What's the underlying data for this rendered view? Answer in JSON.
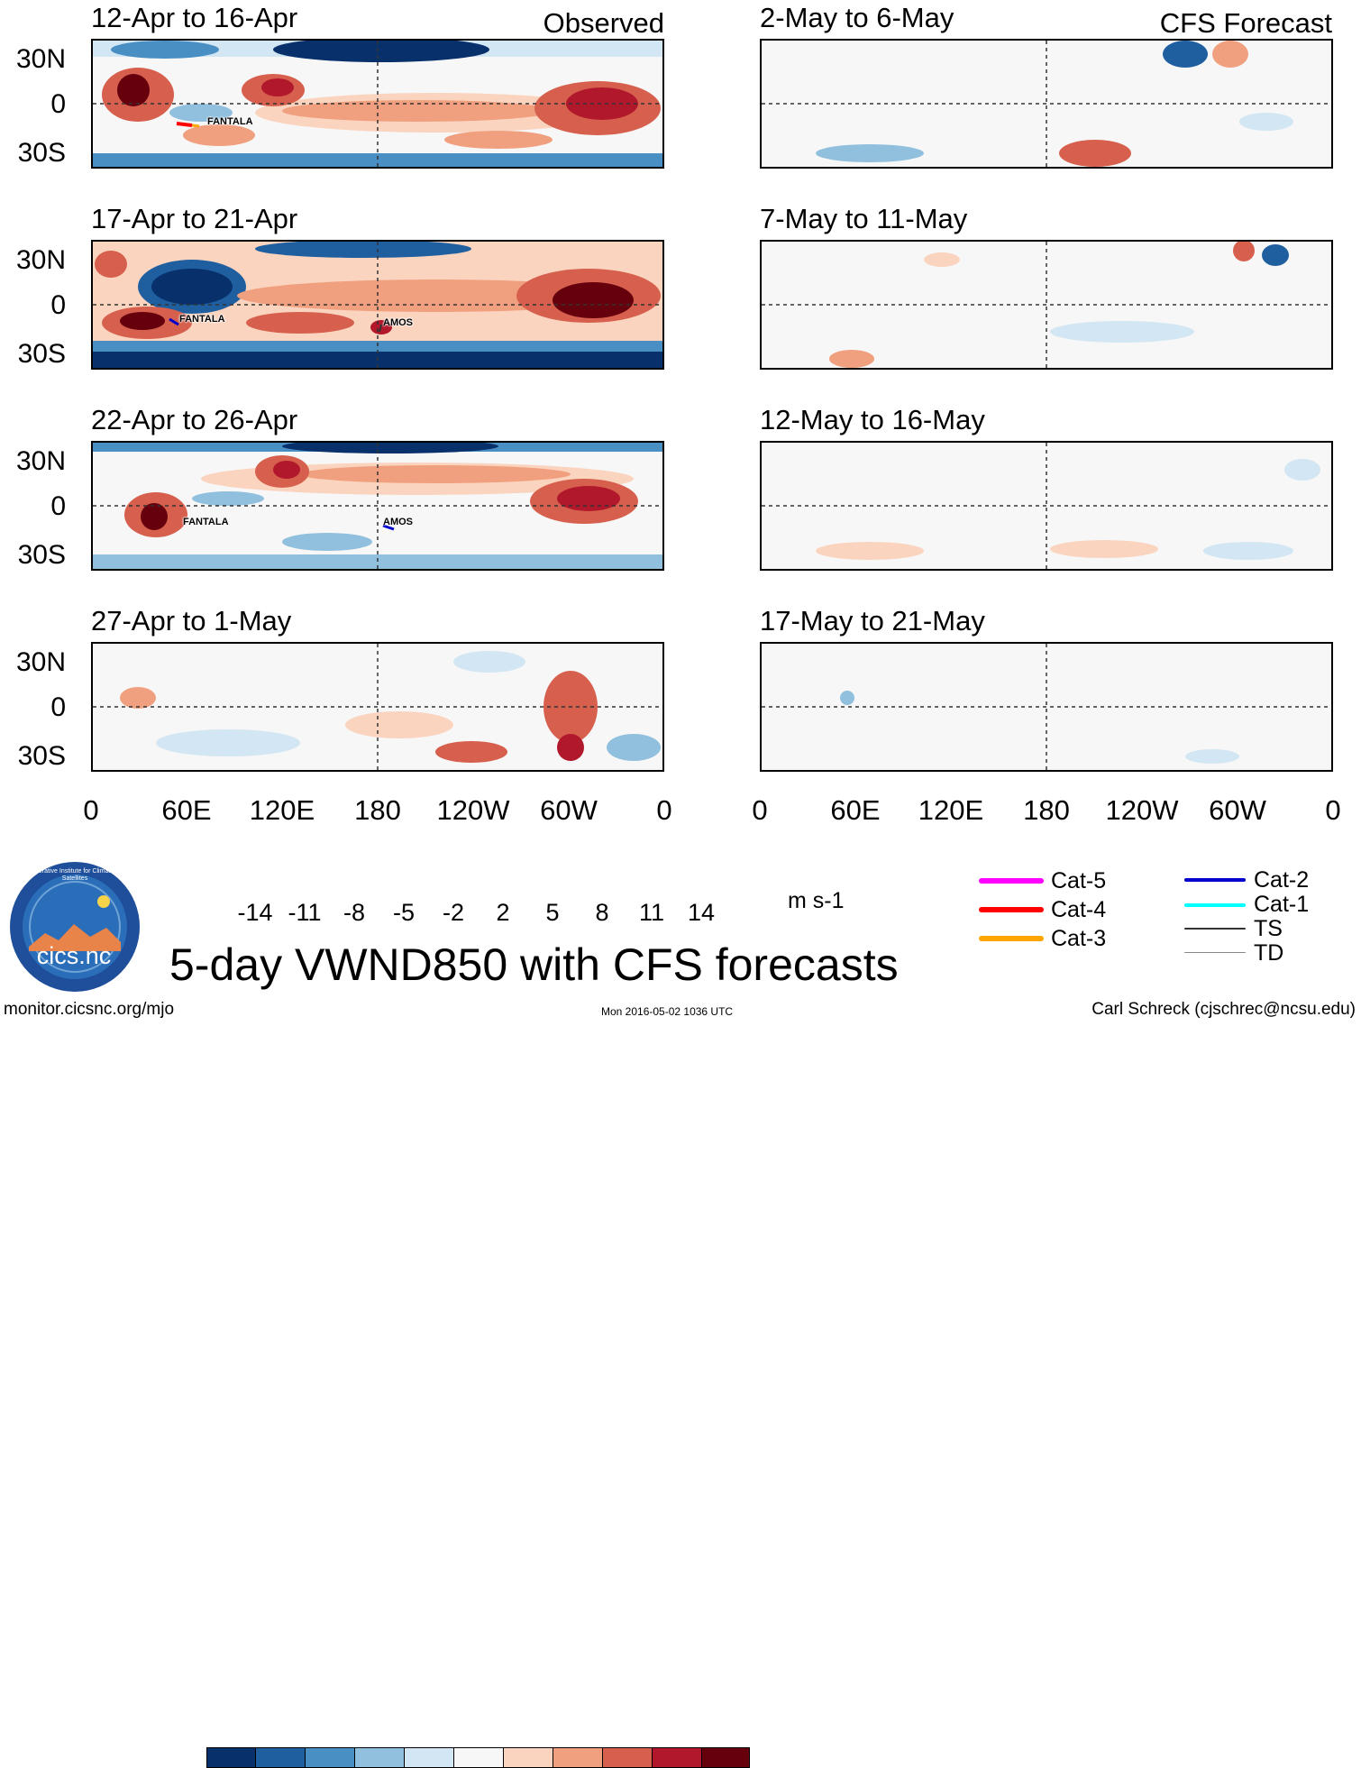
{
  "header": {
    "observed_label": "Observed",
    "forecast_label": "CFS Forecast"
  },
  "observed_panels": [
    {
      "title": "12-Apr to 16-Apr",
      "storms": [
        "FANTALA"
      ]
    },
    {
      "title": "17-Apr to 21-Apr",
      "storms": [
        "FANTALA",
        "AMOS"
      ]
    },
    {
      "title": "22-Apr to 26-Apr",
      "storms": [
        "FANTALA",
        "AMOS"
      ]
    },
    {
      "title": "27-Apr to 1-May",
      "storms": []
    }
  ],
  "forecast_panels": [
    {
      "title": "2-May to 6-May"
    },
    {
      "title": "7-May to 11-May"
    },
    {
      "title": "12-May to 16-May"
    },
    {
      "title": "17-May to 21-May"
    }
  ],
  "axes": {
    "lat_labels": [
      "30N",
      "0",
      "30S"
    ],
    "lon_labels": [
      "0",
      "60E",
      "120E",
      "180",
      "120W",
      "60W",
      "0"
    ]
  },
  "colorbar": {
    "ticks": [
      "-14",
      "-11",
      "-8",
      "-5",
      "-2",
      "2",
      "5",
      "8",
      "11",
      "14"
    ],
    "colors": [
      "#08306b",
      "#1f5fa0",
      "#4a8fc4",
      "#90c0de",
      "#d2e6f3",
      "#f7f7f7",
      "#fbd4bf",
      "#f1a07f",
      "#d6604d",
      "#b2182b",
      "#67000d"
    ],
    "units": "m s-1"
  },
  "legend": {
    "items": [
      {
        "label": "Cat-5",
        "color": "#ff00ff"
      },
      {
        "label": "Cat-4",
        "color": "#ff0000"
      },
      {
        "label": "Cat-3",
        "color": "#ffa500"
      },
      {
        "label": "Cat-2",
        "color": "#0000cd"
      },
      {
        "label": "Cat-1",
        "color": "#00ffff"
      },
      {
        "label": "TS",
        "color": "#333333"
      },
      {
        "label": "TD",
        "color": "#888888"
      }
    ]
  },
  "logo": {
    "text": "cics.nc",
    "ring_text": "Cooperative Institute for Climate and Satellites"
  },
  "main_title": "5-day VWND850 with CFS forecasts",
  "footer": {
    "url": "monitor.cicsnc.org/mjo",
    "timestamp": "Mon 2016-05-02 1036 UTC",
    "author": "Carl Schreck (cjschrec@ncsu.edu)"
  }
}
